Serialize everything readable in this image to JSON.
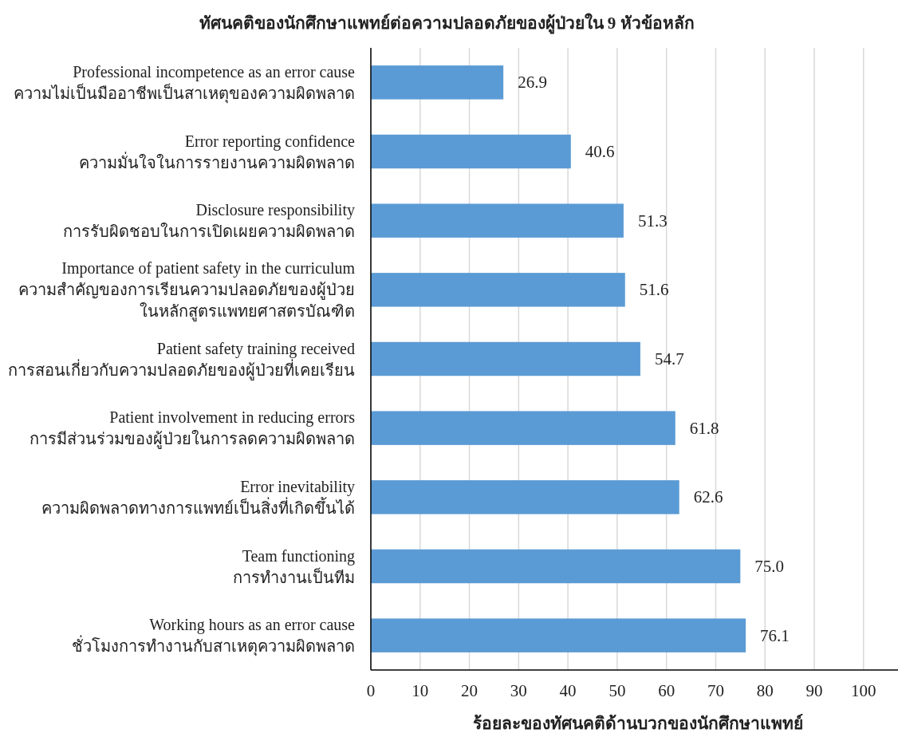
{
  "chart_data": {
    "type": "bar",
    "orientation": "horizontal",
    "title": "ทัศนคติของนักศึกษาแพทย์ต่อความปลอดภัยของผู้ป่วยใน 9 หัวข้อหลัก",
    "xlabel": "ร้อยละของทัศนคติด้านบวกของนักศึกษาแพทย์",
    "categories": [
      "Professional incompetence as an error cause\nความไม่เป็นมืออาชีพเป็นสาเหตุของความผิดพลาด",
      "Error reporting confidence\nความมั่นใจในการรายงานความผิดพลาด",
      "Disclosure responsibility\nการรับผิดชอบในการเปิดเผยความผิดพลาด",
      "Importance of patient safety in the curriculum\nความสำคัญของการเรียนความปลอดภัยของผู้ป่วย\nในหลักสูตรแพทยศาสตรบัณฑิต",
      "Patient safety training received\nการสอนเกี่ยวกับความปลอดภัยของผู้ป่วยที่เคยเรียน",
      "Patient involvement in reducing errors\nการมีส่วนร่วมของผู้ป่วยในการลดความผิดพลาด",
      "Error inevitability\nความผิดพลาดทางการแพทย์เป็นสิ่งที่เกิดขึ้นได้",
      "Team functioning\nการทำงานเป็นทีม",
      "Working hours as an error cause\nชั่วโมงการทำงานกับสาเหตุความผิดพลาด"
    ],
    "values": [
      26.9,
      40.6,
      51.3,
      51.6,
      54.7,
      61.8,
      62.6,
      75.0,
      76.1
    ],
    "value_labels": [
      "26.9",
      "40.6",
      "51.3",
      "51.6",
      "54.7",
      "61.8",
      "62.6",
      "75.0",
      "76.1"
    ],
    "color": "#5b9bd5",
    "xlim": [
      0,
      107
    ],
    "xticks": [
      0,
      10,
      20,
      30,
      40,
      50,
      60,
      70,
      80,
      90,
      100
    ],
    "grid": "x"
  }
}
